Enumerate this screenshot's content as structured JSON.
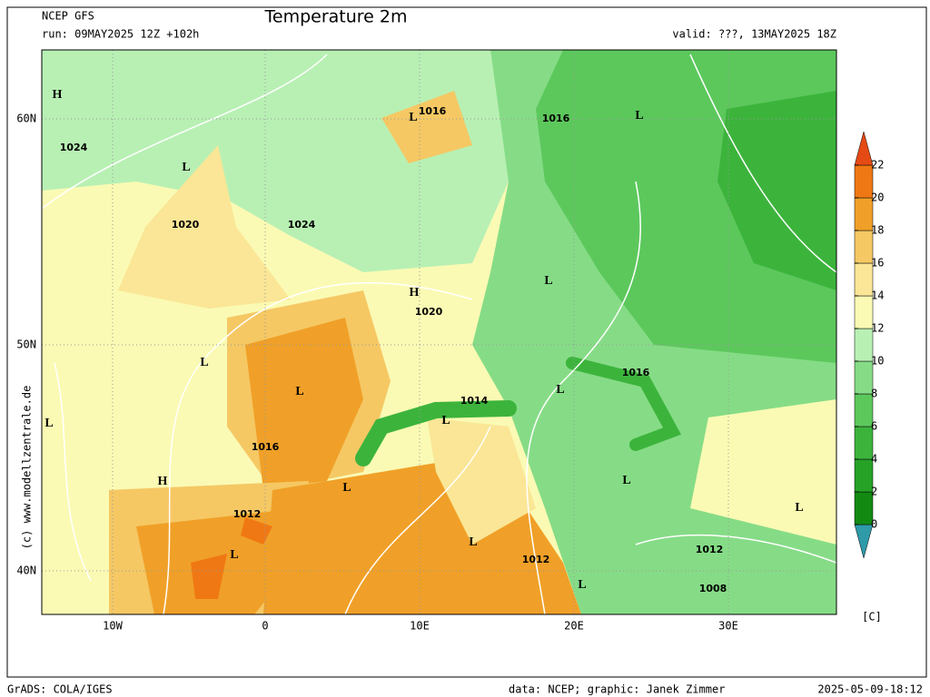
{
  "header": {
    "model": "NCEP GFS",
    "run": "run: 09MAY2025 12Z +102h",
    "title": "Temperature 2m",
    "valid": "valid: ???, 13MAY2025 18Z"
  },
  "map": {
    "lat_labels": [
      "60N",
      "50N",
      "40N"
    ],
    "lon_labels": [
      "10W",
      "0",
      "10E",
      "20E",
      "30E"
    ],
    "pressure_labels": [
      "H",
      "L",
      "1016",
      "1016",
      "L",
      "1024",
      "L",
      "1020",
      "1024",
      "L",
      "H",
      "1020",
      "L",
      "L",
      "1016",
      "1014",
      "L",
      "L",
      "L",
      "1016",
      "H",
      "L",
      "L",
      "L",
      "1012",
      "L",
      "L",
      "1012",
      "1012",
      "1008",
      "L"
    ]
  },
  "colorbar": {
    "ticks": [
      0,
      2,
      4,
      6,
      8,
      10,
      12,
      14,
      16,
      18,
      20,
      22
    ],
    "colors": [
      "#2f9aa8",
      "#128a12",
      "#26a226",
      "#3cb43c",
      "#5cc85c",
      "#86dc86",
      "#b8f0b4",
      "#fafab4",
      "#fae696",
      "#f5c864",
      "#f0a028",
      "#f07814",
      "#e64a14"
    ],
    "unit": "[C]"
  },
  "footer": {
    "software": "GrADS: COLA/IGES",
    "credit": "data: NCEP; graphic: Janek Zimmer",
    "timestamp": "2025-05-09-18:12",
    "copyright": "(c) www.modellzentrale.de"
  }
}
